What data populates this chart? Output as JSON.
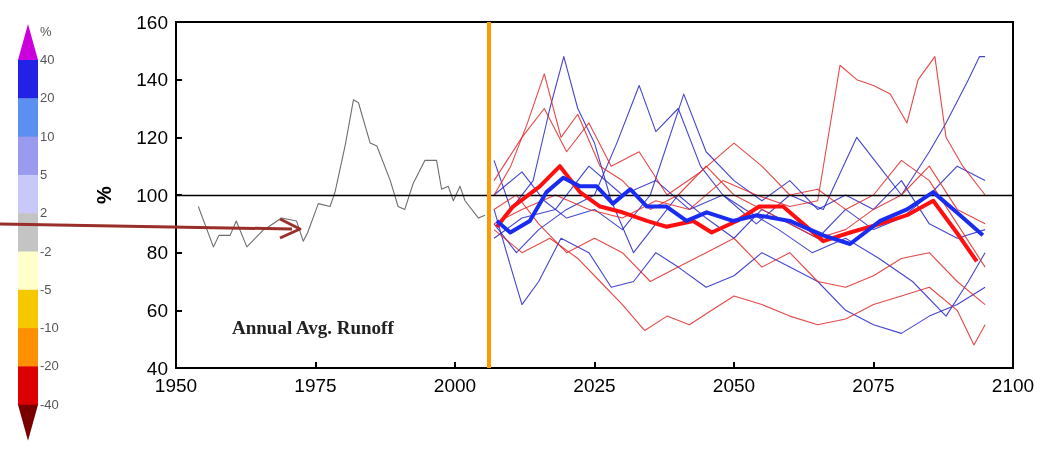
{
  "chart_data": {
    "type": "line",
    "ylabel": "%",
    "annotations": [
      "Annual Avg. Runoff",
      "%",
      "40",
      "20",
      "10",
      "5",
      "2",
      "-2",
      "-5",
      "-10",
      "-20",
      "-40"
    ],
    "xlim": [
      1950,
      2100
    ],
    "xticks": [
      1950,
      1975,
      2000,
      2025,
      2050,
      2075,
      2100
    ],
    "ylim": [
      40,
      160
    ],
    "yticks": [
      40,
      60,
      80,
      100,
      120,
      140,
      160
    ],
    "grid": false,
    "marker": "none",
    "line_style": "solid",
    "ref_lines": [
      {
        "axis": "y",
        "value": 100,
        "color": "#000000"
      },
      {
        "axis": "x",
        "value": 2006,
        "color": "#ff9900"
      }
    ],
    "series": [
      {
        "color": "#555555",
        "x": [
          1954,
          1956.7,
          1957.7,
          1959.7,
          1960.8,
          1962.7,
          1965.7,
          1966.6,
          1968.9,
          1971.6,
          1972.8,
          1973.6,
          1975.5,
          1977.6,
          1978.5,
          1980.3,
          1981.8,
          1982.7,
          1984.8,
          1986,
          1988.4,
          1989.8,
          1991,
          1992.5,
          1994.6,
          1996.7,
          1997.6,
          1998.8,
          1999.7,
          2000.9,
          2001.8,
          2004.2,
          2005.4
        ],
        "values": [
          96,
          82,
          86,
          86,
          91,
          82,
          88,
          89,
          92,
          91,
          84,
          87,
          97,
          96,
          101,
          117,
          133,
          132,
          118,
          117,
          105,
          96,
          95,
          104,
          112,
          112,
          102,
          103,
          98,
          103,
          98,
          92,
          93
        ]
      },
      {
        "color": "#2424c8",
        "x": [
          2007,
          2010,
          2014,
          2017,
          2019.5,
          2022,
          2025,
          2028,
          2032,
          2036,
          2040,
          2045,
          2050,
          2055,
          2060,
          2065,
          2070,
          2075,
          2080,
          2085,
          2090,
          2095
        ],
        "values": [
          112,
          95,
          105,
          130,
          148,
          130,
          118,
          98,
          80,
          90,
          100,
          92,
          85,
          95,
          90,
          85,
          95,
          88,
          92,
          100,
          110,
          105
        ]
      },
      {
        "color": "#2424c8",
        "x": [
          2007,
          2012,
          2018,
          2024,
          2030,
          2036,
          2042,
          2048,
          2054,
          2060,
          2066,
          2072,
          2076,
          2080,
          2085,
          2088,
          2092,
          2094,
          2095
        ],
        "values": [
          85,
          92,
          95,
          110,
          100,
          105,
          95,
          100,
          90,
          100,
          95,
          120,
          110,
          100,
          115,
          125,
          140,
          148,
          148
        ]
      },
      {
        "color": "#2424c8",
        "x": [
          2007,
          2011,
          2015,
          2020,
          2025,
          2029,
          2033,
          2036,
          2040,
          2044,
          2048,
          2052,
          2058,
          2064,
          2070,
          2076,
          2082,
          2088,
          2092,
          2095
        ],
        "values": [
          90,
          80,
          88,
          95,
          100,
          118,
          138,
          122,
          130,
          110,
          100,
          95,
          88,
          80,
          85,
          78,
          70,
          58,
          70,
          80
        ]
      },
      {
        "color": "#2424c8",
        "x": [
          2007,
          2010,
          2012,
          2015,
          2019,
          2024,
          2028,
          2032,
          2036,
          2040,
          2045,
          2050,
          2055,
          2060,
          2065,
          2070,
          2075,
          2080,
          2085,
          2090,
          2095
        ],
        "values": [
          95,
          75,
          62,
          70,
          85,
          80,
          68,
          70,
          80,
          75,
          68,
          72,
          80,
          75,
          70,
          60,
          55,
          52,
          58,
          62,
          68
        ]
      },
      {
        "color": "#2424c8",
        "x": [
          2007,
          2012,
          2016,
          2020,
          2025,
          2030,
          2035,
          2041,
          2045,
          2050,
          2055,
          2060,
          2065,
          2070,
          2075,
          2080,
          2085,
          2090,
          2095
        ],
        "values": [
          100,
          108,
          98,
          92,
          95,
          88,
          100,
          135,
          115,
          105,
          98,
          105,
          95,
          100,
          95,
          105,
          90,
          85,
          88
        ]
      },
      {
        "color": "#e02828",
        "x": [
          2007,
          2010,
          2013,
          2016,
          2019,
          2022,
          2026,
          2030,
          2035,
          2040,
          2045,
          2050,
          2055,
          2060,
          2065,
          2070,
          2075,
          2080,
          2085,
          2090,
          2095
        ],
        "values": [
          100,
          110,
          125,
          142,
          120,
          128,
          110,
          105,
          95,
          100,
          110,
          100,
          95,
          90,
          85,
          88,
          95,
          100,
          110,
          95,
          90
        ]
      },
      {
        "color": "#e02828",
        "x": [
          2007,
          2012,
          2018,
          2024,
          2030,
          2036,
          2042,
          2048,
          2054,
          2060,
          2065,
          2069,
          2072,
          2075,
          2078,
          2081,
          2083,
          2086,
          2088,
          2091,
          2095
        ],
        "values": [
          90,
          95,
          100,
          95,
          92,
          98,
          95,
          105,
          100,
          96,
          98,
          145,
          140,
          138,
          135,
          125,
          140,
          148,
          120,
          110,
          100
        ]
      },
      {
        "color": "#e02828",
        "x": [
          2007,
          2012,
          2017,
          2022,
          2026,
          2030,
          2034,
          2038,
          2042,
          2046,
          2050,
          2055,
          2060,
          2065,
          2070,
          2075,
          2080,
          2085,
          2090,
          2093,
          2095
        ],
        "values": [
          88,
          80,
          85,
          78,
          70,
          62,
          53,
          58,
          55,
          60,
          65,
          62,
          58,
          55,
          57,
          62,
          65,
          68,
          60,
          48,
          55
        ]
      },
      {
        "color": "#e02828",
        "x": [
          2007,
          2011,
          2015,
          2020,
          2025,
          2030,
          2035,
          2040,
          2045,
          2050,
          2055,
          2060,
          2065,
          2070,
          2075,
          2080,
          2085,
          2090,
          2095
        ],
        "values": [
          95,
          100,
          90,
          80,
          85,
          80,
          70,
          75,
          80,
          85,
          75,
          80,
          70,
          68,
          72,
          78,
          80,
          70,
          62
        ]
      },
      {
        "color": "#e02828",
        "x": [
          2007,
          2012,
          2016,
          2020,
          2024,
          2028,
          2033,
          2038,
          2044,
          2050,
          2055,
          2060,
          2065,
          2070,
          2075,
          2080,
          2085,
          2090,
          2095
        ],
        "values": [
          105,
          120,
          130,
          115,
          125,
          110,
          115,
          100,
          108,
          118,
          110,
          100,
          102,
          95,
          100,
          112,
          105,
          90,
          75
        ]
      },
      {
        "color": "#ff1010",
        "x": [
          2007.5,
          2010.4,
          2015.2,
          2018.8,
          2022.4,
          2026,
          2030,
          2034.4,
          2037.9,
          2042.7,
          2046,
          2050.5,
          2054.5,
          2058.8,
          2066,
          2070.8,
          2076.2,
          2081,
          2085.7,
          2089.9,
          2093.5
        ],
        "values": [
          89,
          96,
          103,
          110,
          101,
          96,
          94,
          91,
          89,
          91,
          87,
          91,
          96,
          96,
          84,
          87,
          90,
          93,
          98,
          87,
          77
        ]
      },
      {
        "color": "#1a2cf0",
        "x": [
          2007.5,
          2009.9,
          2013.4,
          2016.4,
          2019.4,
          2022.4,
          2025.4,
          2028.3,
          2031.4,
          2034.4,
          2037.9,
          2041.5,
          2045.1,
          2049.8,
          2054.1,
          2060,
          2066,
          2070.8,
          2076.2,
          2081,
          2085.7,
          2089.9,
          2094.6
        ],
        "values": [
          91,
          87,
          91,
          101,
          106,
          103,
          103,
          97,
          102,
          96,
          96,
          91,
          94,
          91,
          93,
          91,
          86,
          83,
          91,
          95,
          101,
          94,
          86
        ]
      }
    ]
  }
}
